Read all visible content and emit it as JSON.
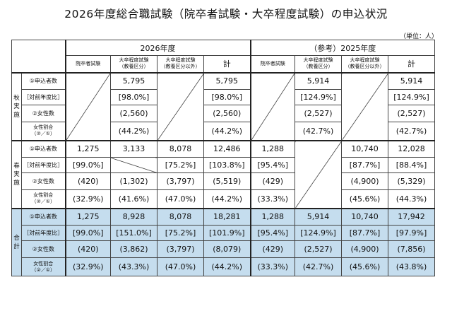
{
  "title": "2026年度総合職試験（院卒者試験・大卒程度試験）の申込状況",
  "unit": "（単位：人）",
  "header": {
    "year_2026": "2026年度",
    "year_2025": "（参考）2025年度",
    "col_in": "院卒者試験",
    "col_dai1_a": "大卒程度試験",
    "col_dai1_b": "（教養区分）",
    "col_dai2_a": "大卒程度試験",
    "col_dai2_b": "（教養区分以外）",
    "col_total": "計"
  },
  "groups": {
    "aki_a": "秋",
    "aki_b": "実",
    "aki_c": "施",
    "haru_a": "春",
    "haru_b": "実",
    "haru_c": "施",
    "gokei_a": "合",
    "gokei_b": "計"
  },
  "row_labels": {
    "apply": "①申込者数",
    "ratio": "［対前年度比］",
    "female": "②女性数",
    "female_pct_a": "女性割合",
    "female_pct_b": "（②／①）"
  },
  "aki": {
    "apply": [
      "",
      "5,795",
      "",
      "5,795",
      "",
      "5,914",
      "",
      "5,914"
    ],
    "ratio": [
      "",
      "[98.0%]",
      "",
      "[98.0%]",
      "",
      "[124.9%]",
      "",
      "[124.9%]"
    ],
    "female": [
      "",
      "(2,560)",
      "",
      "(2,560)",
      "",
      "(2,527)",
      "",
      "(2,527)"
    ],
    "female_pct": [
      "",
      "(44.2%)",
      "",
      "(44.2%)",
      "",
      "(42.7%)",
      "",
      "(42.7%)"
    ]
  },
  "haru": {
    "apply": [
      "1,275",
      "3,133",
      "8,078",
      "12,486",
      "1,288",
      "",
      "10,740",
      "12,028"
    ],
    "ratio": [
      "[99.0%]",
      "",
      "[75.2%]",
      "[103.8%]",
      "[95.4%]",
      "",
      "[87.7%]",
      "[88.4%]"
    ],
    "female": [
      "(420)",
      "(1,302)",
      "(3,797)",
      "(5,519)",
      "(429)",
      "",
      "(4,900)",
      "(5,329)"
    ],
    "female_pct": [
      "(32.9%)",
      "(41.6%)",
      "(47.0%)",
      "(44.2%)",
      "(33.3%)",
      "",
      "(45.6%)",
      "(44.3%)"
    ]
  },
  "gokei": {
    "apply": [
      "1,275",
      "8,928",
      "8,078",
      "18,281",
      "1,288",
      "5,914",
      "10,740",
      "17,942"
    ],
    "ratio": [
      "[99.0%]",
      "[151.0%]",
      "[75.2%]",
      "[101.9%]",
      "[95.4%]",
      "[124.9%]",
      "[87.7%]",
      "[97.9%]"
    ],
    "female": [
      "(420)",
      "(3,862)",
      "(3,797)",
      "(8,079)",
      "(429)",
      "(2,527)",
      "(4,900)",
      "(7,856)"
    ],
    "female_pct": [
      "(32.9%)",
      "(43.3%)",
      "(47.0%)",
      "(44.2%)",
      "(33.3%)",
      "(42.7%)",
      "(45.6%)",
      "(43.8%)"
    ]
  },
  "colors": {
    "highlight": "#c5ddee",
    "border": "#444444"
  }
}
